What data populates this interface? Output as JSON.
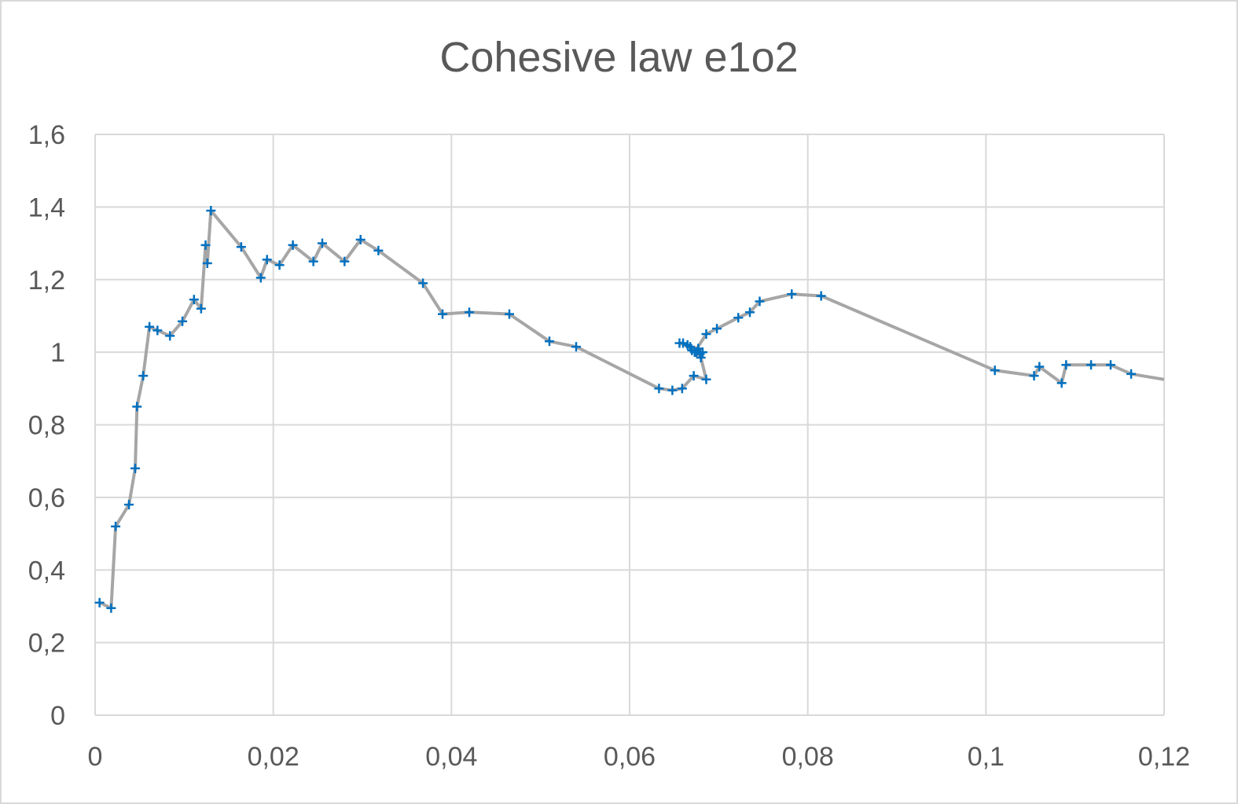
{
  "chart_data": {
    "type": "scatter",
    "title": "Cohesive law e1o2",
    "xlabel": "",
    "ylabel": "",
    "xlim": [
      0,
      0.12
    ],
    "ylim": [
      0,
      1.6
    ],
    "x_ticks": [
      "0",
      "0,02",
      "0,04",
      "0,06",
      "0,08",
      "0,1",
      "0,12"
    ],
    "y_ticks": [
      "0",
      "0,2",
      "0,4",
      "0,6",
      "0,8",
      "1",
      "1,2",
      "1,4",
      "1,6"
    ],
    "grid": true,
    "legend": "none",
    "line_color": "#a6a6a6",
    "marker_color": "#0070c0",
    "marker": "plus",
    "series": [
      {
        "points": [
          [
            0.0005,
            0.31
          ],
          [
            0.0018,
            0.295
          ],
          [
            0.0023,
            0.52
          ],
          [
            0.0038,
            0.58
          ],
          [
            0.0045,
            0.68
          ],
          [
            0.0047,
            0.85
          ],
          [
            0.0054,
            0.935
          ],
          [
            0.0061,
            1.07
          ],
          [
            0.007,
            1.06
          ],
          [
            0.0084,
            1.045
          ],
          [
            0.0098,
            1.085
          ],
          [
            0.0111,
            1.145
          ],
          [
            0.0119,
            1.12
          ],
          [
            0.0124,
            1.295
          ],
          [
            0.0126,
            1.245
          ],
          [
            0.013,
            1.39
          ],
          [
            0.0164,
            1.29
          ],
          [
            0.0186,
            1.205
          ],
          [
            0.0193,
            1.255
          ],
          [
            0.0207,
            1.24
          ],
          [
            0.0222,
            1.295
          ],
          [
            0.0245,
            1.25
          ],
          [
            0.0255,
            1.3
          ],
          [
            0.028,
            1.25
          ],
          [
            0.0298,
            1.31
          ],
          [
            0.0318,
            1.28
          ],
          [
            0.0368,
            1.19
          ],
          [
            0.039,
            1.105
          ],
          [
            0.042,
            1.11
          ],
          [
            0.0465,
            1.105
          ],
          [
            0.051,
            1.03
          ],
          [
            0.054,
            1.015
          ],
          [
            0.0633,
            0.9
          ],
          [
            0.0648,
            0.895
          ],
          [
            0.0659,
            0.9
          ],
          [
            0.0672,
            0.935
          ],
          [
            0.0686,
            0.925
          ],
          [
            0.068,
            0.985
          ],
          [
            0.0675,
            1.0
          ],
          [
            0.067,
            1.005
          ],
          [
            0.0665,
            1.02
          ],
          [
            0.066,
            1.025
          ],
          [
            0.0656,
            1.025
          ],
          [
            0.0668,
            1.015
          ],
          [
            0.0677,
            1.01
          ],
          [
            0.0682,
            1.0
          ],
          [
            0.0679,
            0.995
          ],
          [
            0.0673,
            1.0
          ],
          [
            0.0686,
            1.05
          ],
          [
            0.0698,
            1.065
          ],
          [
            0.0722,
            1.095
          ],
          [
            0.0735,
            1.11
          ],
          [
            0.0746,
            1.14
          ],
          [
            0.0782,
            1.16
          ],
          [
            0.0815,
            1.155
          ],
          [
            0.101,
            0.95
          ],
          [
            0.1054,
            0.935
          ],
          [
            0.106,
            0.96
          ],
          [
            0.1085,
            0.915
          ],
          [
            0.109,
            0.965
          ],
          [
            0.1118,
            0.965
          ],
          [
            0.114,
            0.965
          ],
          [
            0.1163,
            0.94
          ],
          [
            0.12,
            0.925
          ]
        ]
      }
    ]
  }
}
